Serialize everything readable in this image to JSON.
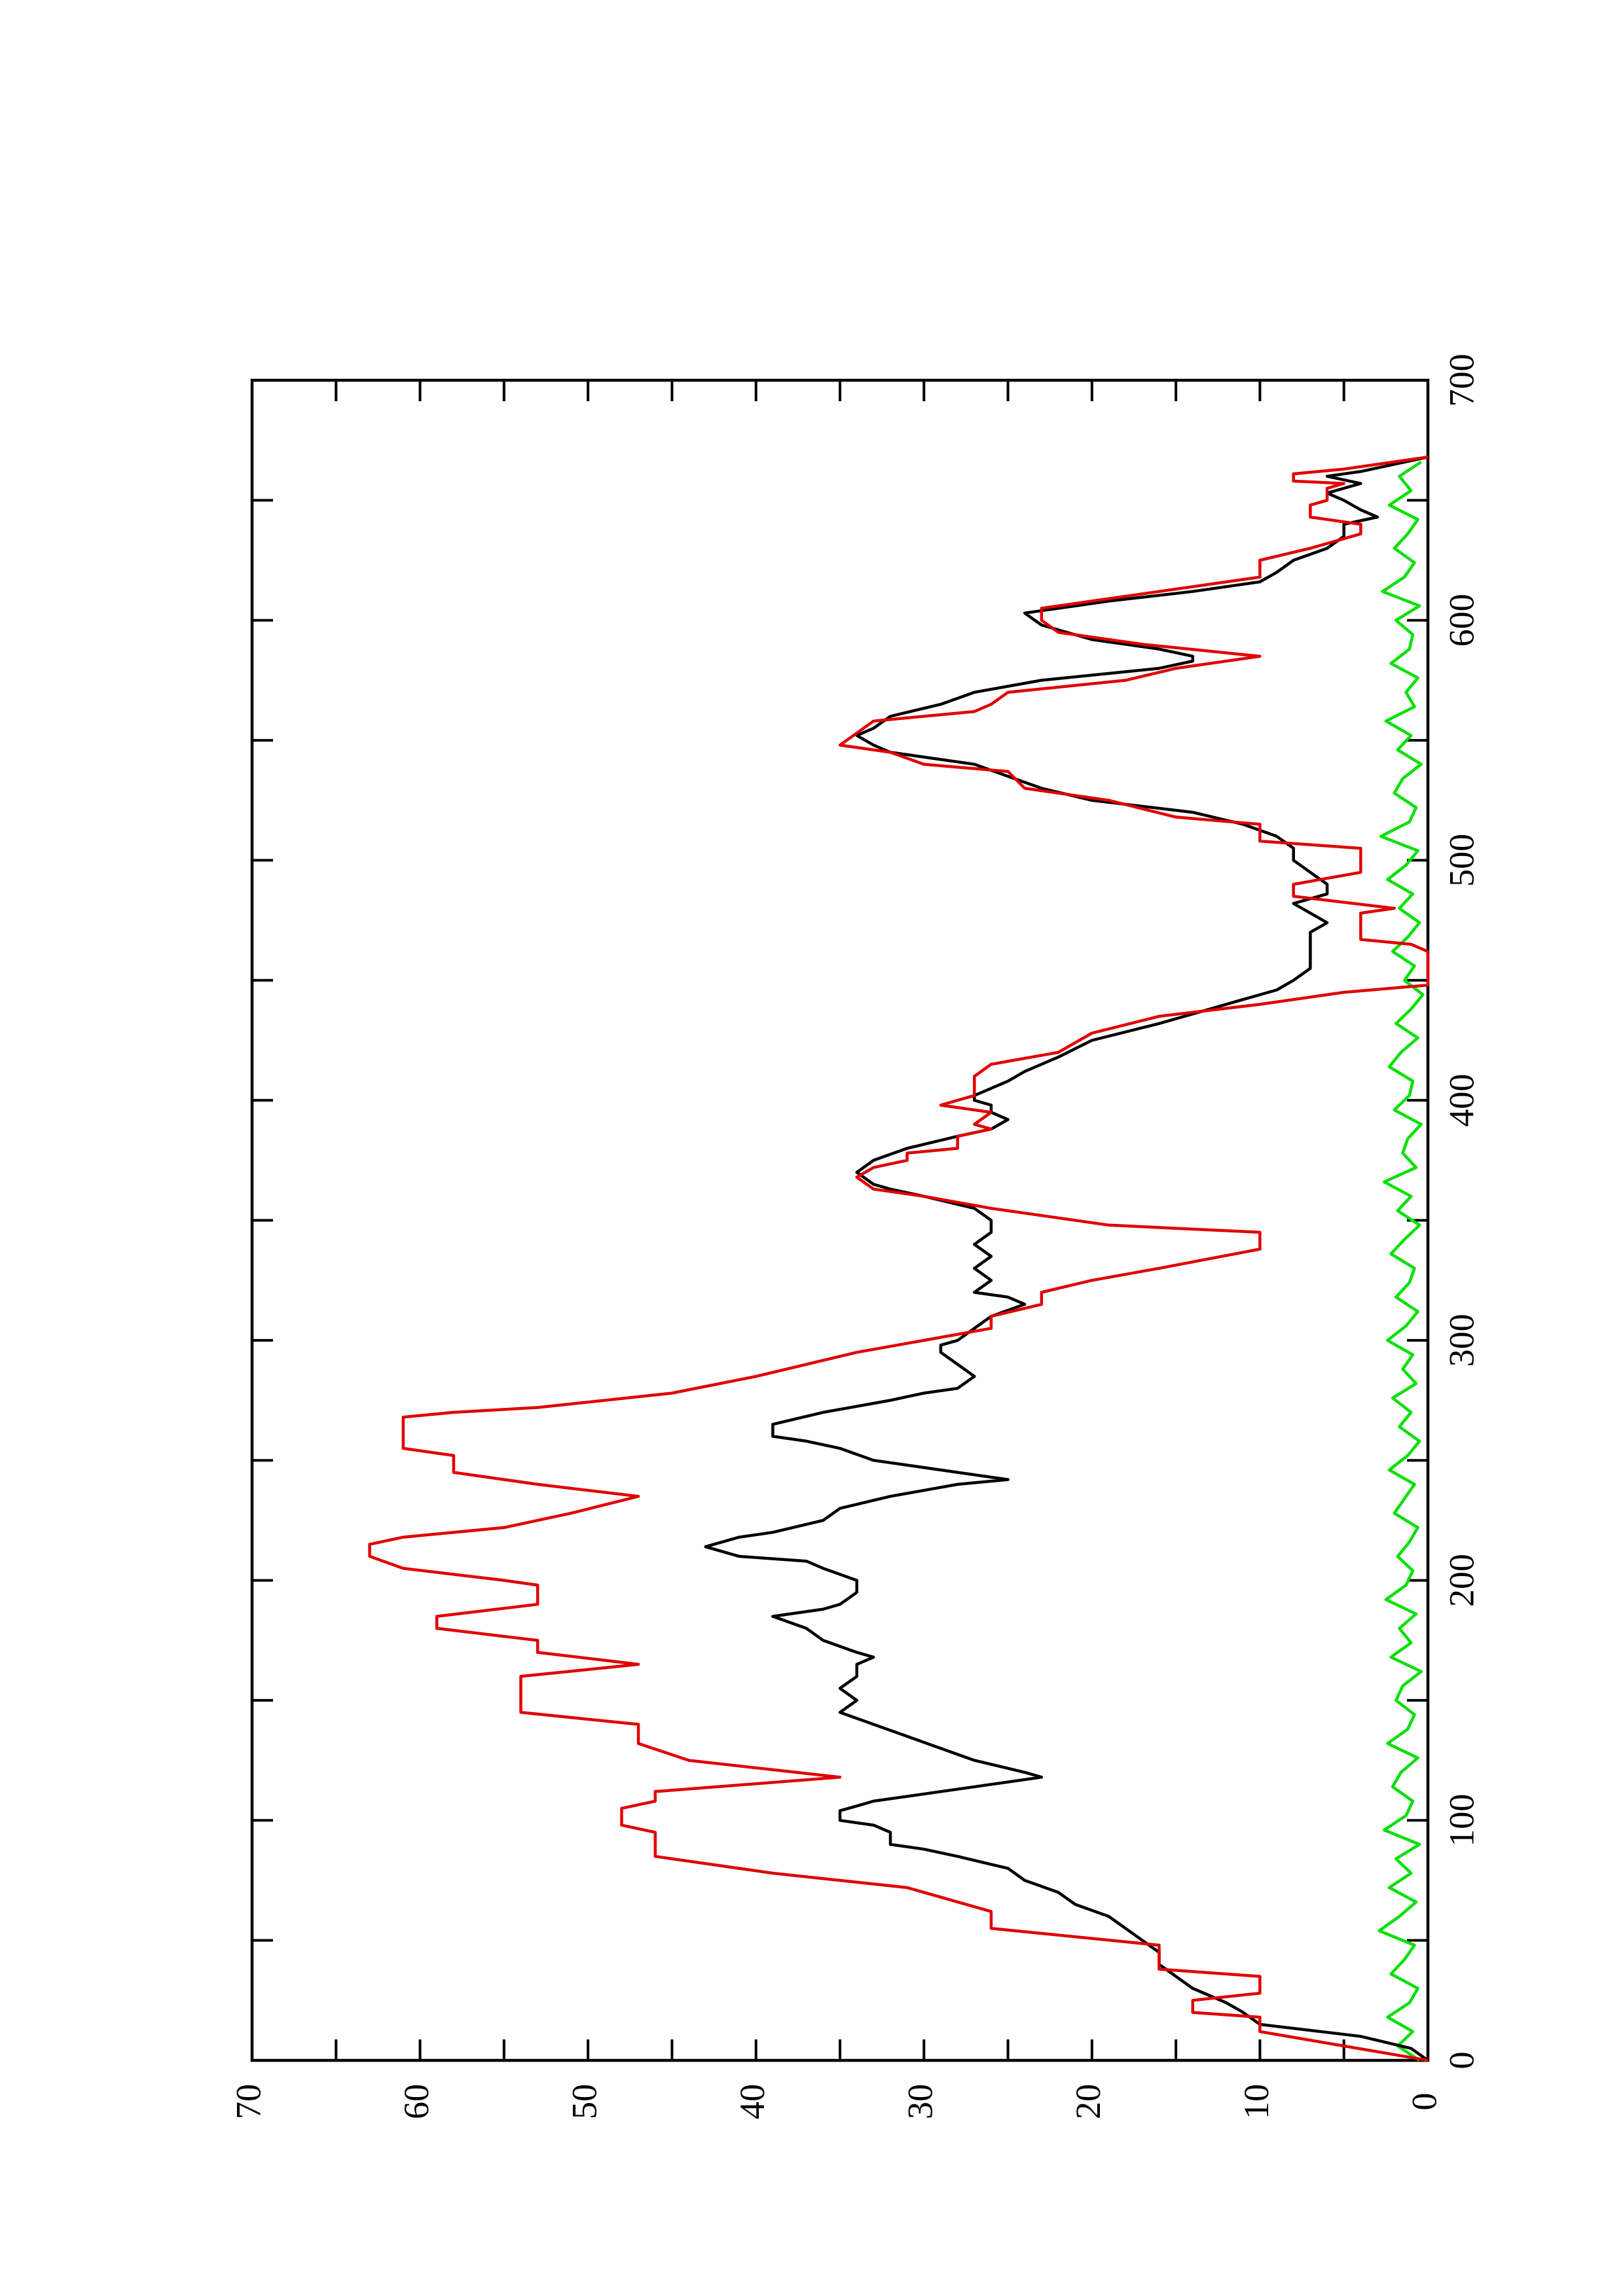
{
  "chart_data": {
    "type": "line",
    "rotated": true,
    "xlim": [
      0,
      700
    ],
    "ylim": [
      0,
      70
    ],
    "xticks": [
      0,
      100,
      200,
      300,
      400,
      500,
      600,
      700
    ],
    "yticks": [
      0,
      10,
      20,
      30,
      40,
      50,
      60,
      70
    ],
    "xticks_minor": [
      50,
      150,
      250,
      350,
      450,
      550,
      650
    ],
    "yticks_minor": [
      5,
      15,
      25,
      35,
      45,
      55,
      65
    ],
    "series": [
      {
        "color": "#00e000",
        "x": [
          0,
          6,
          12,
          18,
          24,
          30,
          36,
          42,
          48,
          54,
          60,
          66,
          72,
          78,
          84,
          90,
          96,
          102,
          108,
          114,
          120,
          126,
          132,
          138,
          144,
          150,
          156,
          162,
          168,
          174,
          180,
          186,
          192,
          198,
          204,
          210,
          216,
          222,
          228,
          234,
          240,
          246,
          252,
          258,
          264,
          270,
          276,
          282,
          288,
          294,
          300,
          306,
          312,
          318,
          324,
          330,
          336,
          342,
          348,
          354,
          360,
          366,
          372,
          378,
          384,
          390,
          396,
          402,
          408,
          414,
          420,
          426,
          432,
          438,
          444,
          450,
          456,
          462,
          468,
          474,
          480,
          486,
          492,
          498,
          504,
          510,
          516,
          522,
          528,
          534,
          540,
          546,
          552,
          558,
          564,
          570,
          576,
          582,
          588,
          594,
          600,
          606,
          612,
          618,
          624,
          630,
          636,
          642,
          648,
          654,
          660,
          666
        ],
        "values": [
          0.5,
          1.8,
          0.9,
          2.4,
          1.1,
          0.6,
          2.2,
          1.4,
          0.8,
          2.9,
          1.7,
          0.7,
          2.3,
          1.0,
          1.9,
          0.5,
          2.6,
          1.3,
          0.9,
          2.1,
          1.6,
          0.6,
          2.4,
          1.2,
          0.8,
          1.9,
          1.5,
          0.4,
          2.2,
          1.0,
          1.7,
          0.7,
          2.5,
          1.3,
          0.9,
          1.8,
          1.1,
          0.6,
          2.0,
          1.4,
          0.8,
          2.3,
          1.2,
          0.5,
          1.7,
          1.0,
          2.1,
          0.7,
          1.5,
          0.9,
          2.4,
          1.3,
          0.6,
          1.9,
          1.1,
          0.8,
          2.2,
          1.4,
          0.5,
          1.8,
          1.0,
          2.6,
          0.7,
          1.5,
          1.2,
          0.4,
          2.0,
          1.1,
          0.9,
          2.3,
          1.6,
          0.6,
          1.9,
          1.0,
          0.3,
          1.4,
          0.8,
          2.1,
          1.2,
          0.5,
          1.7,
          0.9,
          2.4,
          1.3,
          0.6,
          2.8,
          1.1,
          0.7,
          2.0,
          1.5,
          0.4,
          1.8,
          1.0,
          2.5,
          0.8,
          1.3,
          0.6,
          2.2,
          1.1,
          0.9,
          1.9,
          0.5,
          2.7,
          1.4,
          0.8,
          2.0,
          1.2,
          0.6,
          2.3,
          1.0,
          1.7,
          0.4
        ]
      },
      {
        "color": "#000000",
        "x": [
          0,
          5,
          10,
          15,
          20,
          24,
          27,
          30,
          35,
          40,
          45,
          50,
          55,
          60,
          65,
          70,
          75,
          80,
          85,
          88,
          90,
          95,
          98,
          100,
          104,
          106,
          108,
          112,
          115,
          118,
          120,
          125,
          130,
          135,
          140,
          145,
          150,
          155,
          160,
          165,
          168,
          170,
          175,
          180,
          185,
          188,
          190,
          195,
          200,
          205,
          208,
          210,
          212,
          214,
          218,
          220,
          225,
          230,
          235,
          240,
          242,
          245,
          250,
          255,
          258,
          260,
          265,
          270,
          275,
          278,
          280,
          285,
          290,
          295,
          298,
          300,
          305,
          310,
          315,
          318,
          320,
          325,
          330,
          335,
          340,
          345,
          350,
          355,
          360,
          363,
          365,
          370,
          375,
          380,
          385,
          388,
          392,
          395,
          398,
          400,
          402,
          408,
          412,
          418,
          425,
          432,
          438,
          442,
          446,
          450,
          455,
          460,
          465,
          470,
          474,
          478,
          482,
          486,
          490,
          495,
          500,
          505,
          510,
          515,
          520,
          525,
          530,
          535,
          540,
          545,
          548,
          552,
          555,
          560,
          565,
          570,
          575,
          580,
          583,
          585,
          588,
          592,
          598,
          603,
          608,
          612,
          616,
          620,
          625,
          630,
          635,
          640,
          643,
          646,
          650,
          653,
          655,
          657,
          660,
          662,
          665,
          668
        ],
        "values": [
          0,
          1,
          4,
          10,
          11,
          12,
          13,
          14,
          15,
          16,
          16,
          17,
          18,
          19,
          21,
          22,
          24,
          25,
          28,
          30,
          32,
          32,
          33,
          35,
          35,
          34,
          33,
          29,
          26,
          23,
          24,
          27,
          29,
          31,
          33,
          35,
          34,
          35,
          34,
          34,
          33,
          34,
          36,
          37,
          39,
          36,
          35,
          34,
          34,
          36,
          37,
          41,
          42,
          43,
          41,
          39,
          36,
          35,
          32,
          28,
          25,
          28,
          33,
          35,
          37,
          39,
          39,
          36,
          32,
          30,
          28,
          27,
          28,
          29,
          29,
          28,
          27,
          26,
          24,
          25,
          27,
          26,
          27,
          26,
          27,
          26,
          26,
          27,
          30,
          32,
          33,
          34,
          33,
          31,
          28,
          26,
          25,
          26,
          26,
          27,
          27,
          25,
          24,
          22,
          20,
          16,
          13,
          11,
          9,
          8,
          7,
          7,
          7,
          7,
          6,
          7,
          8,
          6,
          6,
          7,
          8,
          8,
          9,
          11,
          14,
          20,
          23,
          25,
          27,
          32,
          33,
          34,
          33,
          32,
          29,
          27,
          23,
          16,
          14,
          14,
          16,
          20,
          23,
          24,
          19,
          14,
          10,
          9,
          8,
          6,
          5,
          5,
          3,
          4,
          5,
          6,
          5,
          4,
          6,
          4,
          2,
          0
        ]
      },
      {
        "color": "#e00000",
        "x": [
          0,
          12,
          18,
          20,
          25,
          28,
          35,
          38,
          48,
          55,
          62,
          72,
          78,
          85,
          95,
          98,
          105,
          108,
          112,
          118,
          125,
          132,
          140,
          145,
          160,
          165,
          170,
          175,
          180,
          185,
          190,
          198,
          200,
          205,
          210,
          215,
          218,
          222,
          228,
          235,
          240,
          245,
          252,
          255,
          268,
          270,
          272,
          278,
          285,
          295,
          300,
          305,
          310,
          315,
          320,
          325,
          330,
          338,
          345,
          348,
          355,
          360,
          363,
          368,
          372,
          375,
          378,
          380,
          385,
          388,
          390,
          395,
          398,
          400,
          402,
          410,
          415,
          420,
          428,
          435,
          440,
          445,
          448,
          462,
          465,
          467,
          478,
          480,
          485,
          490,
          495,
          505,
          508,
          515,
          518,
          525,
          530,
          537,
          540,
          545,
          548,
          553,
          558,
          562,
          565,
          570,
          575,
          580,
          585,
          590,
          595,
          600,
          605,
          608,
          612,
          618,
          625,
          630,
          636,
          640,
          643,
          648,
          650,
          655,
          657,
          658,
          661,
          663,
          668
        ],
        "values": [
          0,
          10,
          10,
          14,
          14,
          10,
          10,
          16,
          16,
          26,
          26,
          31,
          39,
          46,
          46,
          48,
          48,
          46,
          46,
          35,
          44,
          47,
          47,
          54,
          54,
          47,
          53,
          53,
          59,
          59,
          53,
          53,
          55,
          61,
          63,
          63,
          61,
          55,
          51,
          47,
          53,
          58,
          58,
          61,
          61,
          58,
          53,
          45,
          40,
          34,
          30,
          26,
          26,
          23,
          23,
          20,
          16,
          10,
          10,
          19,
          26,
          30,
          33,
          34,
          33,
          31,
          31,
          28,
          28,
          26,
          27,
          26,
          29,
          28,
          27,
          27,
          26,
          22,
          20,
          16,
          10,
          5,
          0,
          0,
          1,
          4,
          4,
          2,
          8,
          8,
          4,
          4,
          10,
          10,
          15,
          19,
          24,
          25,
          30,
          32,
          35,
          34,
          33,
          27,
          26,
          25,
          18,
          15,
          10,
          17,
          22,
          23,
          23,
          20,
          16,
          10,
          10,
          7,
          4,
          4,
          7,
          7,
          6,
          6,
          5,
          8,
          8,
          5,
          0
        ]
      }
    ]
  }
}
